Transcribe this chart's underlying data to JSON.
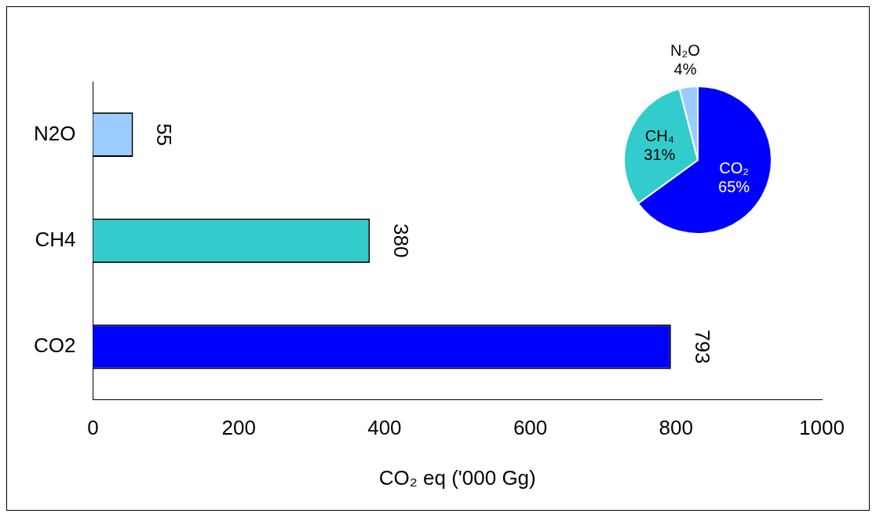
{
  "chart_data": [
    {
      "type": "bar",
      "orientation": "horizontal",
      "categories": [
        "N2O",
        "CH4",
        "CO2"
      ],
      "values": [
        55,
        380,
        793
      ],
      "colors": [
        "#99ccff",
        "#33cccc",
        "#0000ff"
      ],
      "xlim": [
        0,
        1000
      ],
      "xticks": [
        0,
        200,
        400,
        600,
        800,
        1000
      ],
      "xlabel": "CO₂ eq ('000 Gg)",
      "data_labels": true
    },
    {
      "type": "pie",
      "categories": [
        "CO₂",
        "CH₄",
        "N₂O"
      ],
      "values": [
        65,
        31,
        4
      ],
      "colors": [
        "#0000ff",
        "#33cccc",
        "#99ccff"
      ],
      "value_labels": [
        "65%",
        "31%",
        "4%"
      ]
    }
  ]
}
